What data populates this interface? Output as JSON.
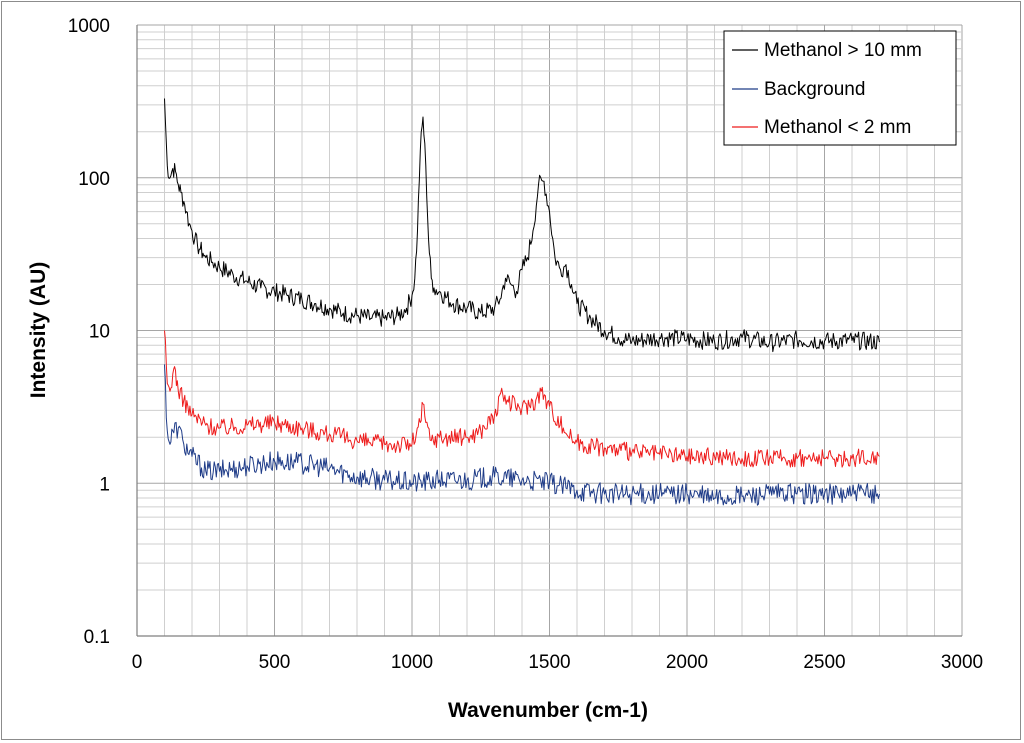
{
  "chart_data": {
    "type": "line",
    "title": "",
    "xlabel": "Wavenumber (cm-1)",
    "ylabel": "Intensity (AU)",
    "x_scale": "linear",
    "y_scale": "log",
    "xlim": [
      0,
      3000
    ],
    "ylim": [
      0.1,
      1000
    ],
    "x_ticks": [
      0,
      500,
      1000,
      1500,
      2000,
      2500,
      3000
    ],
    "x_tick_labels": [
      "0",
      "500",
      "1000",
      "1500",
      "2000",
      "2500",
      "3000"
    ],
    "x_minor_step": 100,
    "y_ticks": [
      0.1,
      1,
      10,
      100,
      1000
    ],
    "y_tick_labels": [
      "0.1",
      "1",
      "10",
      "100",
      "1000"
    ],
    "grid": true,
    "legend_position": "top-right",
    "series": [
      {
        "name": "Methanol > 10 mm",
        "color": "#000000",
        "x": [
          100,
          110,
          120,
          130,
          140,
          150,
          160,
          170,
          180,
          190,
          200,
          210,
          220,
          230,
          240,
          250,
          275,
          300,
          350,
          400,
          450,
          500,
          550,
          600,
          650,
          700,
          750,
          800,
          850,
          900,
          950,
          980,
          1000,
          1010,
          1020,
          1030,
          1040,
          1050,
          1060,
          1070,
          1080,
          1100,
          1150,
          1200,
          1250,
          1300,
          1320,
          1340,
          1360,
          1380,
          1400,
          1420,
          1440,
          1460,
          1480,
          1500,
          1520,
          1540,
          1560,
          1580,
          1600,
          1650,
          1700,
          1750,
          1800,
          1900,
          2000,
          2100,
          2200,
          2300,
          2400,
          2500,
          2600,
          2700
        ],
        "values": [
          330,
          120,
          100,
          115,
          110,
          90,
          80,
          70,
          60,
          50,
          45,
          40,
          36,
          34,
          32,
          30,
          28,
          26,
          23,
          21,
          19,
          18,
          17,
          16,
          15,
          14,
          13,
          12.5,
          12,
          12,
          12.5,
          14,
          17,
          22,
          45,
          150,
          250,
          120,
          40,
          22,
          19,
          18,
          15,
          14,
          13,
          14,
          16,
          22,
          20,
          18,
          25,
          30,
          45,
          90,
          95,
          60,
          30,
          25,
          27,
          20,
          15,
          12,
          10,
          9,
          8.5,
          9,
          8.8,
          8.5,
          9,
          8.3,
          8.7,
          8.5,
          8.6,
          8.4
        ]
      },
      {
        "name": "Background",
        "color": "#1f3c88",
        "x": [
          100,
          110,
          120,
          130,
          150,
          170,
          200,
          250,
          300,
          400,
          500,
          600,
          700,
          800,
          900,
          1000,
          1100,
          1200,
          1300,
          1400,
          1500,
          1600,
          1700,
          1800,
          1900,
          2000,
          2100,
          2200,
          2300,
          2400,
          2500,
          2600,
          2700
        ],
        "values": [
          6,
          2.2,
          1.8,
          2.2,
          2.3,
          1.8,
          1.5,
          1.2,
          1.2,
          1.3,
          1.4,
          1.35,
          1.25,
          1.1,
          1.05,
          1.0,
          1.05,
          1.05,
          1.1,
          1.05,
          1.0,
          0.9,
          0.85,
          0.85,
          0.85,
          0.85,
          0.8,
          0.82,
          0.85,
          0.85,
          0.85,
          0.85,
          0.85
        ]
      },
      {
        "name": "Methanol < 2 mm",
        "color": "#ee1c1c",
        "x": [
          100,
          110,
          120,
          130,
          140,
          150,
          170,
          200,
          250,
          300,
          400,
          500,
          600,
          700,
          800,
          900,
          1000,
          1030,
          1040,
          1050,
          1070,
          1100,
          1200,
          1250,
          1300,
          1330,
          1350,
          1400,
          1450,
          1470,
          1500,
          1550,
          1580,
          1600,
          1700,
          1800,
          1900,
          2000,
          2100,
          2200,
          2300,
          2400,
          2500,
          2600,
          2700
        ],
        "values": [
          10,
          4.5,
          4.0,
          5.2,
          5.5,
          4.0,
          3.5,
          2.8,
          2.4,
          2.3,
          2.4,
          2.5,
          2.3,
          2.1,
          1.9,
          1.8,
          1.8,
          2.5,
          3.3,
          2.5,
          1.9,
          2.0,
          2.0,
          2.2,
          2.8,
          3.8,
          3.4,
          3.1,
          3.5,
          4.0,
          3.2,
          2.3,
          2.0,
          1.85,
          1.7,
          1.6,
          1.55,
          1.5,
          1.5,
          1.45,
          1.45,
          1.45,
          1.45,
          1.45,
          1.5
        ]
      }
    ]
  }
}
